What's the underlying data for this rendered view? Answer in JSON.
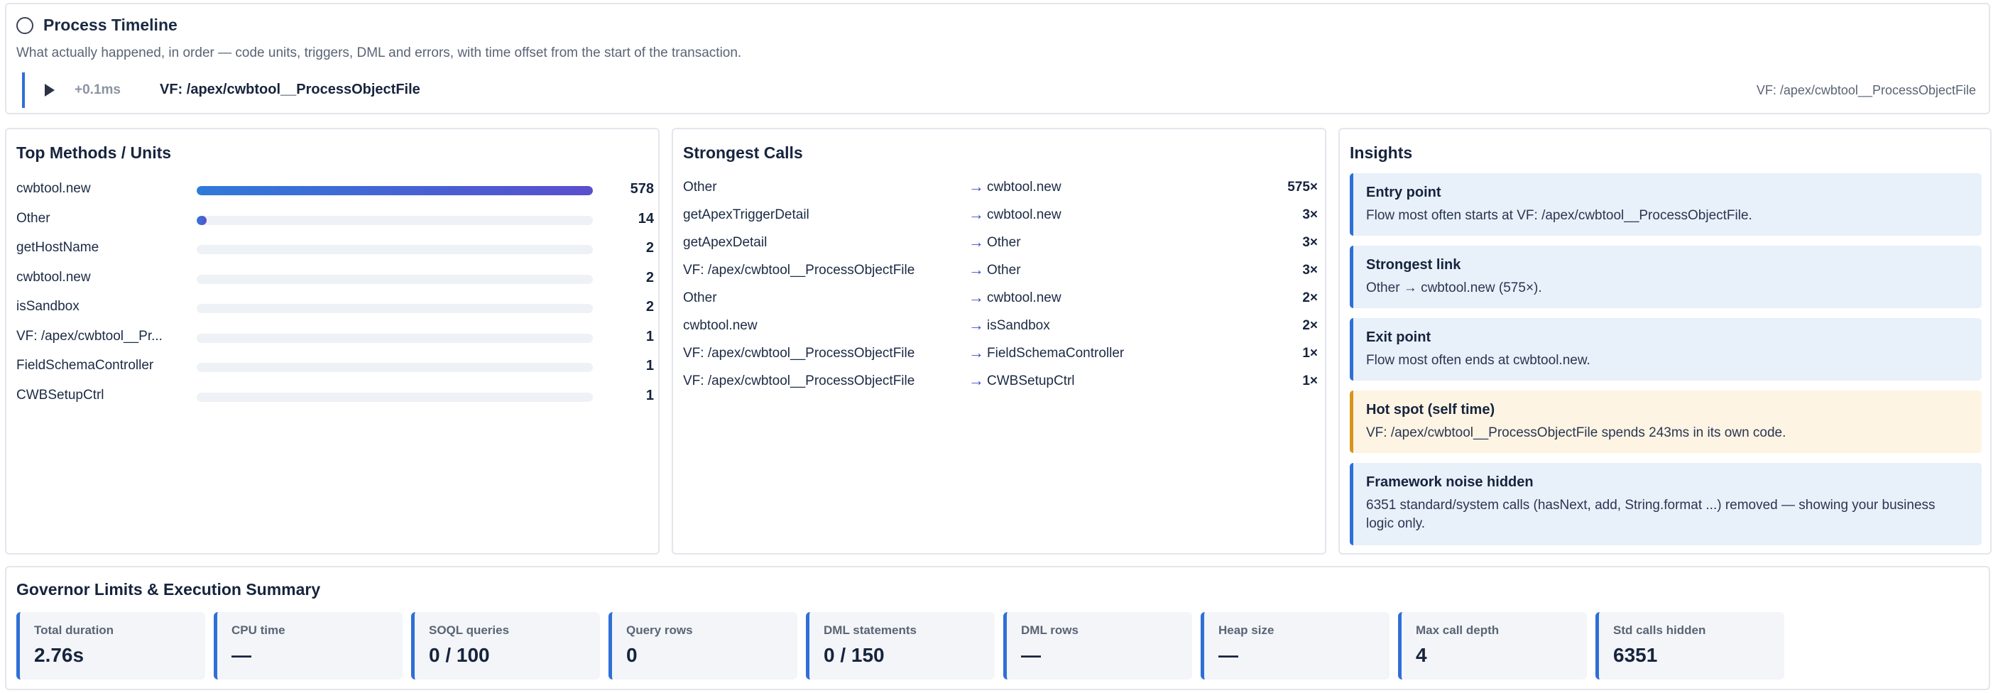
{
  "timeline": {
    "title": "Process Timeline",
    "description": "What actually happened, in order — code units, triggers, DML and errors, with time offset from the start of the transaction.",
    "entry": {
      "offset": "+0.1ms",
      "name": "VF: /apex/cwbtool__ProcessObjectFile",
      "detail": "VF: /apex/cwbtool__ProcessObjectFile"
    }
  },
  "methods": {
    "title": "Top Methods / Units",
    "max": 578,
    "items": [
      {
        "label": "cwbtool.new",
        "count": "578",
        "value": 578
      },
      {
        "label": "Other",
        "count": "14",
        "value": 14
      },
      {
        "label": "getHostName",
        "count": "2",
        "value": 0
      },
      {
        "label": "cwbtool.new",
        "count": "2",
        "value": 0
      },
      {
        "label": "isSandbox",
        "count": "2",
        "value": 0
      },
      {
        "label": "VF: /apex/cwbtool__Pr...",
        "count": "1",
        "value": 0
      },
      {
        "label": "FieldSchemaController",
        "count": "1",
        "value": 0
      },
      {
        "label": "CWBSetupCtrl",
        "count": "1",
        "value": 0
      }
    ]
  },
  "calls": {
    "title": "Strongest Calls",
    "arrow": "→",
    "items": [
      {
        "from": "Other",
        "to": "cwbtool.new",
        "count": "575×"
      },
      {
        "from": "getApexTriggerDetail",
        "to": "cwbtool.new",
        "count": "3×"
      },
      {
        "from": "getApexDetail",
        "to": "Other",
        "count": "3×"
      },
      {
        "from": "VF: /apex/cwbtool__ProcessObjectFile",
        "to": "Other",
        "count": "3×"
      },
      {
        "from": "Other",
        "to": "cwbtool.new",
        "count": "2×"
      },
      {
        "from": "cwbtool.new",
        "to": "isSandbox",
        "count": "2×"
      },
      {
        "from": "VF: /apex/cwbtool__ProcessObjectFile",
        "to": "FieldSchemaController",
        "count": "1×"
      },
      {
        "from": "VF: /apex/cwbtool__ProcessObjectFile",
        "to": "CWBSetupCtrl",
        "count": "1×"
      }
    ]
  },
  "insights": {
    "title": "Insights",
    "items": [
      {
        "title": "Entry point",
        "body": "Flow most often starts at VF: /apex/cwbtool__ProcessObjectFile.",
        "kind": "info"
      },
      {
        "title": "Strongest link",
        "body": "Other → cwbtool.new (575×).",
        "kind": "info"
      },
      {
        "title": "Exit point",
        "body": "Flow most often ends at cwbtool.new.",
        "kind": "info"
      },
      {
        "title": "Hot spot (self time)",
        "body": "VF: /apex/cwbtool__ProcessObjectFile spends 243ms in its own code.",
        "kind": "warn"
      },
      {
        "title": "Framework noise hidden",
        "body": "6351 standard/system calls (hasNext, add, String.format ...) removed — showing your business logic only.",
        "kind": "info"
      }
    ]
  },
  "governor": {
    "title": "Governor Limits & Execution Summary",
    "stats": [
      {
        "label": "Total duration",
        "value": "2.76s"
      },
      {
        "label": "CPU time",
        "value": "—"
      },
      {
        "label": "SOQL queries",
        "value": "0 / 100"
      },
      {
        "label": "Query rows",
        "value": "0"
      },
      {
        "label": "DML statements",
        "value": "0 / 150"
      },
      {
        "label": "DML rows",
        "value": "—"
      },
      {
        "label": "Heap size",
        "value": "—"
      },
      {
        "label": "Max call depth",
        "value": "4"
      },
      {
        "label": "Std calls hidden",
        "value": "6351"
      }
    ]
  }
}
